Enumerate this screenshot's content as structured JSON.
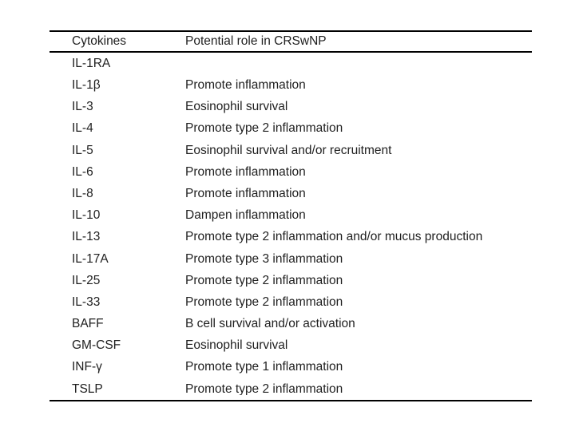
{
  "table": {
    "columns": [
      "Cytokines",
      "Potential role in CRSwNP"
    ],
    "rows": [
      {
        "cytokine": "IL-1RA",
        "role": ""
      },
      {
        "cytokine": "IL-1β",
        "role": "Promote inflammation"
      },
      {
        "cytokine": "IL-3",
        "role": "Eosinophil survival"
      },
      {
        "cytokine": "IL-4",
        "role": "Promote type 2 inflammation"
      },
      {
        "cytokine": "IL-5",
        "role": "Eosinophil survival and/or recruitment"
      },
      {
        "cytokine": "IL-6",
        "role": "Promote inflammation"
      },
      {
        "cytokine": "IL-8",
        "role": "Promote inflammation"
      },
      {
        "cytokine": "IL-10",
        "role": "Dampen inflammation"
      },
      {
        "cytokine": "IL-13",
        "role": "Promote type 2 inflammation and/or mucus production"
      },
      {
        "cytokine": "IL-17A",
        "role": "Promote type 3 inflammation"
      },
      {
        "cytokine": "IL-25",
        "role": "Promote type 2 inflammation"
      },
      {
        "cytokine": "IL-33",
        "role": "Promote type 2 inflammation"
      },
      {
        "cytokine": "BAFF",
        "role": "B cell survival and/or activation"
      },
      {
        "cytokine": "GM-CSF",
        "role": "Eosinophil survival"
      },
      {
        "cytokine": "INF-γ",
        "role": "Promote type 1 inflammation"
      },
      {
        "cytokine": "TSLP",
        "role": "Promote type 2 inflammation"
      }
    ],
    "colors": {
      "text": "#1f1f1f",
      "rule": "#000000",
      "background": "#ffffff"
    }
  }
}
